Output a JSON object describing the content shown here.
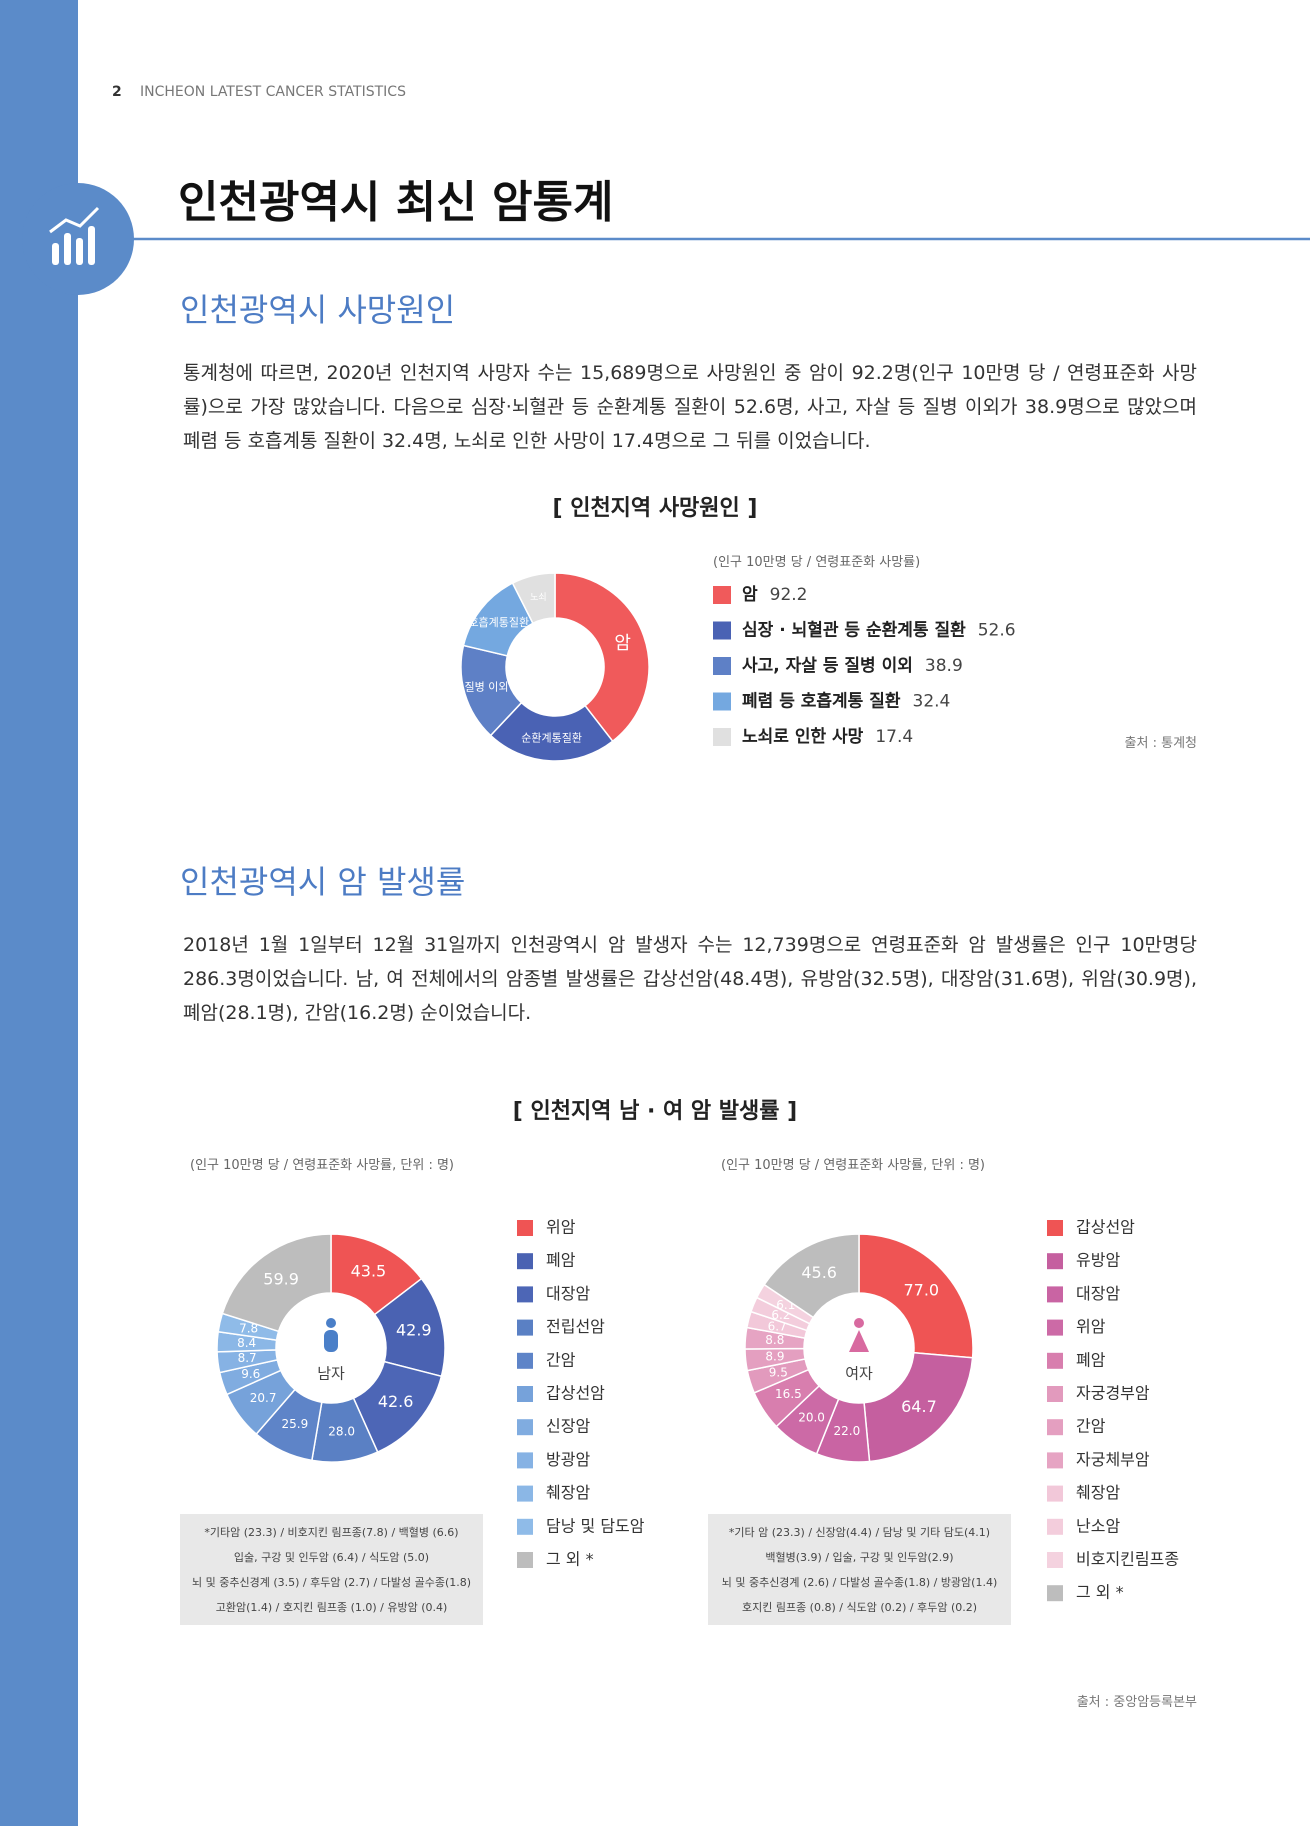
{
  "header": {
    "page_number": "2",
    "text": "INCHEON LATEST CANCER STATISTICS"
  },
  "title": "인천광역시 최신 암통계",
  "death_causes": {
    "heading": "인천광역시 사망원인",
    "paragraph": "통계청에 따르면, 2020년 인천지역 사망자 수는 15,689명으로 사망원인 중 암이 92.2명(인구 10만명 당 / 연령표준화 사망률)으로 가장 많았습니다. 다음으로 심장·뇌혈관 등 순환계통 질환이 52.6명, 사고, 자살 등 질병 이외가 38.9명으로 많았으며 폐렴 등 호흡계통 질환이 32.4명, 노쇠로 인한 사망이 17.4명으로 그 뒤를 이었습니다.",
    "chart": {
      "type": "donut",
      "title": "[ 인천지역 사망원인 ]",
      "note": "(인구 10만명 당 / 연령표준화 사망률)",
      "categories": [
        "암",
        "심장 · 뇌혈관 등 순환계통 질환",
        "사고, 자살 등 질병 이외",
        "폐렴 등 호흡계통 질환",
        "노쇠로 인한 사망"
      ],
      "slice_labels": [
        "암",
        "순환계통질환",
        "질병 이외",
        "호흡계통질환",
        "노쇠"
      ],
      "values": [
        92.2,
        52.6,
        38.9,
        32.4,
        17.4
      ],
      "colors": [
        "#f05a5b",
        "#4a62b4",
        "#5e80c6",
        "#74a8e0",
        "#e0e0e0"
      ],
      "source": "출처 : 통계청"
    }
  },
  "incidence": {
    "heading": "인천광역시 암 발생률",
    "paragraph": "2018년 1월 1일부터 12월 31일까지 인천광역시 암 발생자 수는 12,739명으로 연령표준화 암 발생률은 인구 10만명당 286.3명이었습니다. 남, 여 전체에서의 암종별 발생률은 갑상선암(48.4명), 유방암(32.5명), 대장암(31.6명), 위암(30.9명), 폐암(28.1명), 간암(16.2명) 순이었습니다.",
    "title": "[ 인천지역 남 · 여 암 발생률 ]",
    "source": "출처 : 중앙암등록본부",
    "charts": [
      {
        "type": "donut",
        "note": "(인구 10만명 당 / 연령표준화 사망률, 단위 : 명)",
        "center_label": "남자",
        "categories": [
          "위암",
          "폐암",
          "대장암",
          "전립선암",
          "간암",
          "갑상선암",
          "신장암",
          "방광암",
          "췌장암",
          "담낭 및 담도암",
          "그 외 *"
        ],
        "values": [
          43.5,
          42.9,
          42.6,
          28.0,
          25.9,
          20.7,
          9.6,
          8.7,
          8.4,
          7.8,
          59.9
        ],
        "value_labels": [
          "43.5",
          "42.9",
          "42.6",
          "28.0",
          "25.9",
          "20.7",
          "9.6",
          "8.7",
          "8.4",
          "7.8",
          "59.9"
        ],
        "colors": [
          "#ef5454",
          "#4a62b2",
          "#4d66b6",
          "#5a80c4",
          "#5e84c8",
          "#76a2da",
          "#80ace0",
          "#86b2e4",
          "#8bb7e6",
          "#8fbbe8",
          "#bdbdbd"
        ],
        "footnotes": [
          "*기타암 (23.3) / 비호지킨 림프종(7.8) / 백혈병 (6.6)",
          "입술, 구강 및 인두암 (6.4) / 식도암 (5.0)",
          "뇌 및 중추신경계 (3.5) / 후두암 (2.7) / 다발성 골수종(1.8)",
          "고환암(1.4) / 호지킨 림프종 (1.0) / 유방암 (0.4)"
        ]
      },
      {
        "type": "donut",
        "note": "(인구 10만명 당 / 연령표준화 사망률, 단위 : 명)",
        "center_label": "여자",
        "categories": [
          "갑상선암",
          "유방암",
          "대장암",
          "위암",
          "폐암",
          "자궁경부암",
          "간암",
          "자궁체부암",
          "췌장암",
          "난소암",
          "비호지킨림프종",
          "그 외 *"
        ],
        "values": [
          77.0,
          64.7,
          22.0,
          20.0,
          16.5,
          9.5,
          8.9,
          8.8,
          6.7,
          6.2,
          6.1,
          45.6
        ],
        "value_labels": [
          "77.0",
          "64.7",
          "22.0",
          "20.0",
          "16.5",
          "9.5",
          "8.9",
          "8.8",
          "6.7",
          "6.2",
          "6.1",
          "45.6"
        ],
        "colors": [
          "#ef5454",
          "#c55f9f",
          "#c964a3",
          "#cc6aa6",
          "#d87eae",
          "#e29abd",
          "#e49fc0",
          "#e6a4c3",
          "#f2c8d9",
          "#f3cddc",
          "#f4d2df",
          "#bdbdbd"
        ],
        "footnotes": [
          "*기타 암 (23.3) / 신장암(4.4) / 담낭 및 기타 담도(4.1)",
          "백혈병(3.9) / 입술, 구강 및 인두암(2.9)",
          "뇌 및 중추신경계 (2.6) / 다발성 골수종(1.8) / 방광암(1.4)",
          "호지킨 림프종 (0.8) / 식도암 (0.2) / 후두암 (0.2)"
        ]
      }
    ]
  }
}
